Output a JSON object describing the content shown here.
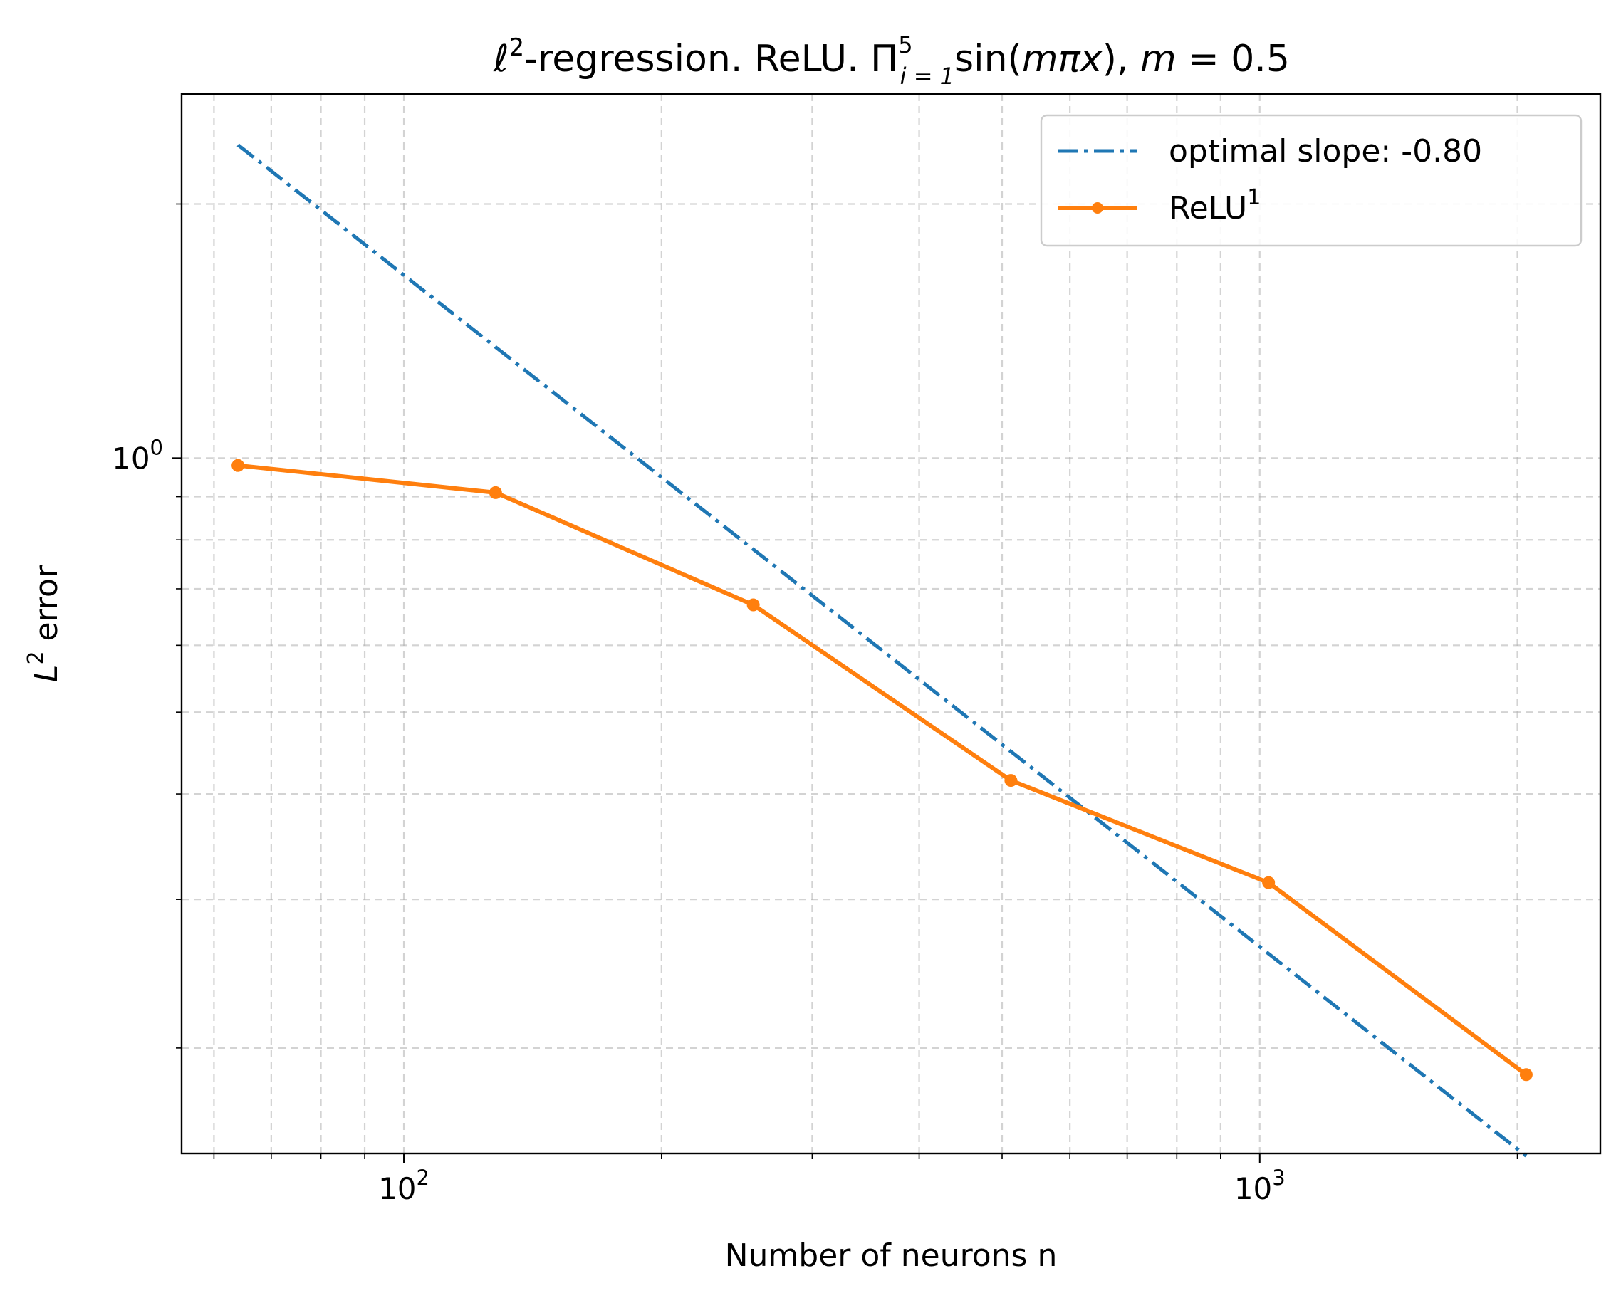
{
  "chart_data": {
    "type": "line",
    "title": "ℓ²-regression. ReLU. Π⁵ᵢ₌₁sin(mπx), m = 0.5",
    "title_parts": {
      "ell": "ℓ",
      "two": "2",
      "text1": "-regression. ReLU. Π",
      "sup5": "5",
      "sub": "i = 1",
      "text2": "sin(",
      "m": "m",
      "pi": "π",
      "x": "x",
      "text3": "), ",
      "m2": "m",
      "eq": " = 0.5"
    },
    "xlabel": "Number of neurons n",
    "ylabel": "L² error",
    "ylabel_parts": {
      "L": "L",
      "sup": "2",
      "rest": " error"
    },
    "x_scale": "log",
    "y_scale": "log",
    "xlim": [
      55,
      2500
    ],
    "ylim": [
      0.15,
      2.7
    ],
    "x_ticks": [
      {
        "value": 100,
        "base": "10",
        "exp": "2"
      },
      {
        "value": 1000,
        "base": "10",
        "exp": "3"
      }
    ],
    "y_ticks": [
      {
        "value": 1,
        "base": "10",
        "exp": "0"
      }
    ],
    "grid": true,
    "legend_position": "top-right",
    "series": [
      {
        "name": "optimal slope: -0.80",
        "style": "dash-dot",
        "color": "#1f77b4",
        "x": [
          64,
          2048
        ],
        "y": [
          2.35,
          0.149
        ]
      },
      {
        "name": "ReLU¹",
        "name_parts": {
          "base": "ReLU",
          "sup": "1"
        },
        "style": "solid-marker",
        "color": "#ff7f0e",
        "x": [
          64,
          128,
          256,
          512,
          1024,
          2048
        ],
        "y": [
          0.98,
          0.91,
          0.67,
          0.415,
          0.314,
          0.186
        ]
      }
    ]
  }
}
